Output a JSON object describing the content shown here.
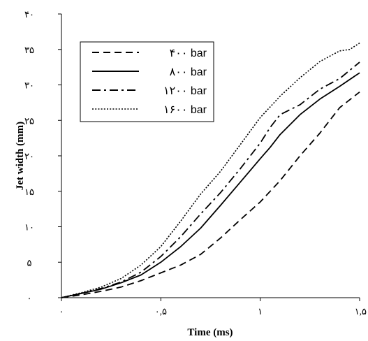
{
  "chart_data": {
    "type": "line",
    "xlabel": "Time (ms)",
    "ylabel": "Jet width  (mm)",
    "xlim": [
      0,
      1.5
    ],
    "ylim": [
      0,
      40
    ],
    "x_ticks": [
      {
        "value": 0,
        "label": "۰"
      },
      {
        "value": 0.5,
        "label": "۰,۵"
      },
      {
        "value": 1,
        "label": "۱"
      },
      {
        "value": 1.5,
        "label": "۱,۵"
      }
    ],
    "y_ticks": [
      {
        "value": 0,
        "label": "۰"
      },
      {
        "value": 5,
        "label": "۵"
      },
      {
        "value": 10,
        "label": "۱۰"
      },
      {
        "value": 15,
        "label": "۱۵"
      },
      {
        "value": 20,
        "label": "۲۰"
      },
      {
        "value": 25,
        "label": "۲۵"
      },
      {
        "value": 30,
        "label": "۳۰"
      },
      {
        "value": 35,
        "label": "۳۵"
      },
      {
        "value": 40,
        "label": "۴۰"
      }
    ],
    "grid": false,
    "legend_position": "top-left",
    "series": [
      {
        "name": "۴۰۰ bar",
        "dash": "dashed",
        "x": [
          0,
          0.1,
          0.2,
          0.3,
          0.4,
          0.5,
          0.6,
          0.7,
          0.8,
          0.9,
          1.0,
          1.1,
          1.2,
          1.3,
          1.4,
          1.5
        ],
        "y": [
          0,
          0.4,
          0.9,
          1.5,
          2.4,
          3.5,
          4.6,
          6.1,
          8.4,
          11.0,
          13.5,
          16.5,
          20.0,
          23.2,
          26.8,
          29.0
        ]
      },
      {
        "name": "۸۰۰ bar",
        "dash": "solid",
        "x": [
          0,
          0.1,
          0.2,
          0.3,
          0.4,
          0.5,
          0.6,
          0.7,
          0.8,
          0.9,
          1.0,
          1.05,
          1.1,
          1.2,
          1.3,
          1.4,
          1.5
        ],
        "y": [
          0,
          0.6,
          1.2,
          2.1,
          3.2,
          5.0,
          7.2,
          9.8,
          13.0,
          16.3,
          19.6,
          21.2,
          23.0,
          25.8,
          28.0,
          29.8,
          31.7
        ]
      },
      {
        "name": "۱۲۰۰ bar",
        "dash": "dashdot",
        "x": [
          0,
          0.1,
          0.2,
          0.3,
          0.4,
          0.5,
          0.6,
          0.7,
          0.8,
          0.9,
          1.0,
          1.05,
          1.1,
          1.2,
          1.3,
          1.4,
          1.5
        ],
        "y": [
          0,
          0.6,
          1.3,
          2.2,
          3.6,
          5.8,
          8.6,
          11.8,
          14.8,
          18.2,
          21.8,
          24.0,
          25.8,
          27.2,
          29.4,
          30.9,
          33.2
        ]
      },
      {
        "name": "۱۶۰۰ bar",
        "dash": "dotted",
        "x": [
          0,
          0.1,
          0.2,
          0.3,
          0.4,
          0.5,
          0.6,
          0.7,
          0.8,
          0.9,
          1.0,
          1.1,
          1.2,
          1.3,
          1.4,
          1.45,
          1.5
        ],
        "y": [
          0,
          0.7,
          1.5,
          2.7,
          4.6,
          7.2,
          10.8,
          14.6,
          17.8,
          21.6,
          25.4,
          28.4,
          31.0,
          33.3,
          34.8,
          35.0,
          35.9
        ]
      }
    ]
  }
}
